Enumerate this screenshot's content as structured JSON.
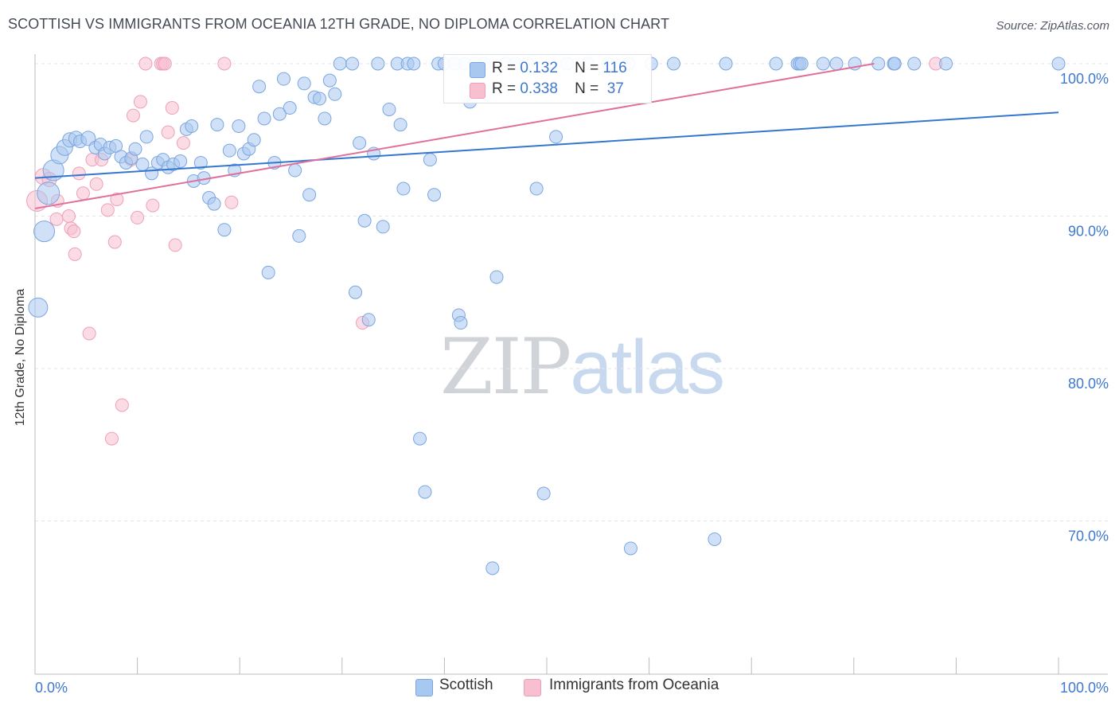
{
  "header": {
    "title": "SCOTTISH VS IMMIGRANTS FROM OCEANIA 12TH GRADE, NO DIPLOMA CORRELATION CHART",
    "source": "Source: ZipAtlas.com"
  },
  "watermark": {
    "zip": "ZIP",
    "atlas": "atlas"
  },
  "legend": {
    "rows": [
      {
        "r_label": "R =",
        "r_value": "0.132",
        "n_label": "N =",
        "n_value": "116"
      },
      {
        "r_label": "R =",
        "r_value": "0.338",
        "n_label": "N =",
        "n_value": "37"
      }
    ]
  },
  "bottom_legend": {
    "items": [
      {
        "label": "Scottish"
      },
      {
        "label": "Immigrants from Oceania"
      }
    ]
  },
  "colors": {
    "scottish_fill": "#a9c8f0",
    "scottish_stroke": "#7aa6e0",
    "scottish_line": "#3577d0",
    "oceania_fill": "#f7bfd0",
    "oceania_stroke": "#ef9fb8",
    "oceania_line": "#e0709a",
    "tick_label": "#3f78d0"
  },
  "chart_data": {
    "type": "scatter",
    "title": "SCOTTISH VS IMMIGRANTS FROM OCEANIA 12TH GRADE, NO DIPLOMA CORRELATION CHART",
    "xlabel": "",
    "ylabel": "12th Grade, No Diploma",
    "xlim": [
      0,
      100
    ],
    "ylim": [
      60,
      101.5
    ],
    "x_tick_labels": [
      "0.0%",
      "100.0%"
    ],
    "y_ticks": [
      70,
      80,
      90,
      100
    ],
    "y_tick_labels": [
      "70.0%",
      "80.0%",
      "90.0%",
      "100.0%"
    ],
    "grid": true,
    "legend_position": "top-center",
    "series": [
      {
        "name": "Scottish",
        "trend": {
          "x": [
            0,
            100
          ],
          "y": [
            92.5,
            96.8
          ]
        },
        "points": [
          [
            0.3,
            84.0,
            12
          ],
          [
            0.9,
            89.0,
            13
          ],
          [
            1.3,
            91.5,
            14
          ],
          [
            1.8,
            93.0,
            13
          ],
          [
            2.4,
            94.0,
            11
          ],
          [
            2.9,
            94.5,
            10
          ],
          [
            3.4,
            95.0,
            9
          ],
          [
            4.0,
            95.1,
            9
          ],
          [
            4.4,
            94.9,
            8
          ],
          [
            5.2,
            95.1,
            9
          ],
          [
            5.9,
            94.5,
            8
          ],
          [
            6.4,
            94.7,
            8
          ],
          [
            6.8,
            94.1,
            8
          ],
          [
            7.3,
            94.5,
            8
          ],
          [
            7.9,
            94.6,
            8
          ],
          [
            8.4,
            93.9,
            8
          ],
          [
            8.9,
            93.5,
            8
          ],
          [
            9.4,
            93.8,
            8
          ],
          [
            9.8,
            94.4,
            8
          ],
          [
            10.5,
            93.4,
            8
          ],
          [
            10.9,
            95.2,
            8
          ],
          [
            11.4,
            92.8,
            8
          ],
          [
            12.0,
            93.5,
            8
          ],
          [
            12.5,
            93.7,
            8
          ],
          [
            13.0,
            93.2,
            8
          ],
          [
            13.5,
            93.4,
            8
          ],
          [
            14.2,
            93.6,
            8
          ],
          [
            14.8,
            95.7,
            8
          ],
          [
            15.3,
            95.9,
            8
          ],
          [
            15.5,
            92.3,
            8
          ],
          [
            16.2,
            93.5,
            8
          ],
          [
            16.5,
            92.5,
            8
          ],
          [
            17.0,
            91.2,
            8
          ],
          [
            17.5,
            90.8,
            8
          ],
          [
            17.8,
            96.0,
            8
          ],
          [
            18.5,
            89.1,
            8
          ],
          [
            19.0,
            94.3,
            8
          ],
          [
            19.5,
            93.0,
            8
          ],
          [
            19.9,
            95.9,
            8
          ],
          [
            20.4,
            94.1,
            8
          ],
          [
            20.9,
            94.4,
            8
          ],
          [
            21.4,
            95.0,
            8
          ],
          [
            21.9,
            98.5,
            8
          ],
          [
            22.4,
            96.4,
            8
          ],
          [
            22.8,
            86.3,
            8
          ],
          [
            23.4,
            93.5,
            8
          ],
          [
            23.9,
            96.7,
            8
          ],
          [
            24.3,
            99.0,
            8
          ],
          [
            24.9,
            97.1,
            8
          ],
          [
            25.4,
            93.0,
            8
          ],
          [
            25.8,
            88.7,
            8
          ],
          [
            26.3,
            98.7,
            8
          ],
          [
            26.8,
            91.4,
            8
          ],
          [
            27.3,
            97.8,
            8
          ],
          [
            27.8,
            97.7,
            8
          ],
          [
            28.3,
            96.4,
            8
          ],
          [
            28.8,
            98.9,
            8
          ],
          [
            29.3,
            98.0,
            8
          ],
          [
            29.8,
            100.0,
            8
          ],
          [
            31.0,
            100.0,
            8
          ],
          [
            31.3,
            85.0,
            8
          ],
          [
            31.7,
            94.8,
            8
          ],
          [
            32.2,
            89.7,
            8
          ],
          [
            32.6,
            83.2,
            8
          ],
          [
            33.1,
            94.1,
            8
          ],
          [
            33.5,
            100.0,
            8
          ],
          [
            34.0,
            89.3,
            8
          ],
          [
            34.6,
            97.0,
            8
          ],
          [
            35.4,
            100.0,
            8
          ],
          [
            35.7,
            96.0,
            8
          ],
          [
            36.0,
            91.8,
            8
          ],
          [
            36.4,
            100.0,
            8
          ],
          [
            37.0,
            100.0,
            8
          ],
          [
            37.6,
            75.4,
            8
          ],
          [
            38.1,
            71.9,
            8
          ],
          [
            38.6,
            93.7,
            8
          ],
          [
            39.0,
            91.4,
            8
          ],
          [
            39.4,
            100.0,
            8
          ],
          [
            40.0,
            100.0,
            8
          ],
          [
            41.0,
            100.0,
            8
          ],
          [
            41.4,
            83.5,
            8
          ],
          [
            41.6,
            83.0,
            8
          ],
          [
            42.0,
            100.0,
            8
          ],
          [
            42.5,
            97.5,
            8
          ],
          [
            43.0,
            100.0,
            8
          ],
          [
            43.9,
            100.0,
            8
          ],
          [
            44.7,
            66.9,
            8
          ],
          [
            45.1,
            86.0,
            8
          ],
          [
            46.0,
            100.0,
            8
          ],
          [
            46.9,
            100.0,
            8
          ],
          [
            48.1,
            100.0,
            8
          ],
          [
            49.0,
            91.8,
            8
          ],
          [
            49.7,
            71.8,
            8
          ],
          [
            50.9,
            95.2,
            8
          ],
          [
            52.0,
            100.0,
            8
          ],
          [
            54.0,
            100.0,
            8
          ],
          [
            56.0,
            100.0,
            8
          ],
          [
            58.0,
            100.0,
            8
          ],
          [
            58.2,
            68.2,
            8
          ],
          [
            60.2,
            100.0,
            8
          ],
          [
            62.4,
            100.0,
            8
          ],
          [
            66.4,
            68.8,
            8
          ],
          [
            67.5,
            100.0,
            8
          ],
          [
            72.4,
            100.0,
            8
          ],
          [
            74.5,
            100.0,
            8
          ],
          [
            74.7,
            100.0,
            8
          ],
          [
            74.9,
            100.0,
            8
          ],
          [
            77.0,
            100.0,
            8
          ],
          [
            78.3,
            100.0,
            8
          ],
          [
            80.1,
            100.0,
            8
          ],
          [
            82.4,
            100.0,
            8
          ],
          [
            83.9,
            100.0,
            8
          ],
          [
            84.0,
            100.0,
            8
          ],
          [
            89.0,
            100.0,
            8
          ],
          [
            85.9,
            100.0,
            8
          ],
          [
            100.0,
            100.0,
            8
          ]
        ]
      },
      {
        "name": "Immigrants from Oceania",
        "trend": {
          "x": [
            0,
            82
          ],
          "y": [
            90.5,
            100.0
          ]
        },
        "points": [
          [
            0.2,
            91.0,
            13
          ],
          [
            0.8,
            92.6,
            10
          ],
          [
            1.4,
            92.4,
            9
          ],
          [
            2.1,
            89.8,
            8
          ],
          [
            2.2,
            91.0,
            8
          ],
          [
            3.3,
            90.0,
            8
          ],
          [
            3.5,
            89.2,
            8
          ],
          [
            3.8,
            89.0,
            8
          ],
          [
            3.9,
            87.5,
            8
          ],
          [
            4.3,
            92.8,
            8
          ],
          [
            4.7,
            91.5,
            8
          ],
          [
            5.3,
            82.3,
            8
          ],
          [
            5.6,
            93.7,
            8
          ],
          [
            6.0,
            92.1,
            8
          ],
          [
            6.5,
            93.7,
            8
          ],
          [
            7.1,
            90.4,
            8
          ],
          [
            7.5,
            75.4,
            8
          ],
          [
            7.8,
            88.3,
            8
          ],
          [
            8.0,
            91.1,
            8
          ],
          [
            8.5,
            77.6,
            8
          ],
          [
            9.4,
            93.7,
            8
          ],
          [
            9.6,
            96.6,
            8
          ],
          [
            10.0,
            89.9,
            8
          ],
          [
            10.3,
            97.5,
            8
          ],
          [
            10.8,
            100.0,
            8
          ],
          [
            11.5,
            90.7,
            8
          ],
          [
            12.3,
            100.0,
            8
          ],
          [
            12.5,
            100.0,
            8
          ],
          [
            12.7,
            100.0,
            8
          ],
          [
            13.0,
            95.5,
            8
          ],
          [
            13.4,
            97.1,
            8
          ],
          [
            13.7,
            88.1,
            8
          ],
          [
            14.5,
            94.8,
            8
          ],
          [
            18.5,
            100.0,
            8
          ],
          [
            19.2,
            90.9,
            8
          ],
          [
            32.0,
            83.0,
            8
          ],
          [
            88.0,
            100.0,
            8
          ]
        ]
      }
    ]
  }
}
